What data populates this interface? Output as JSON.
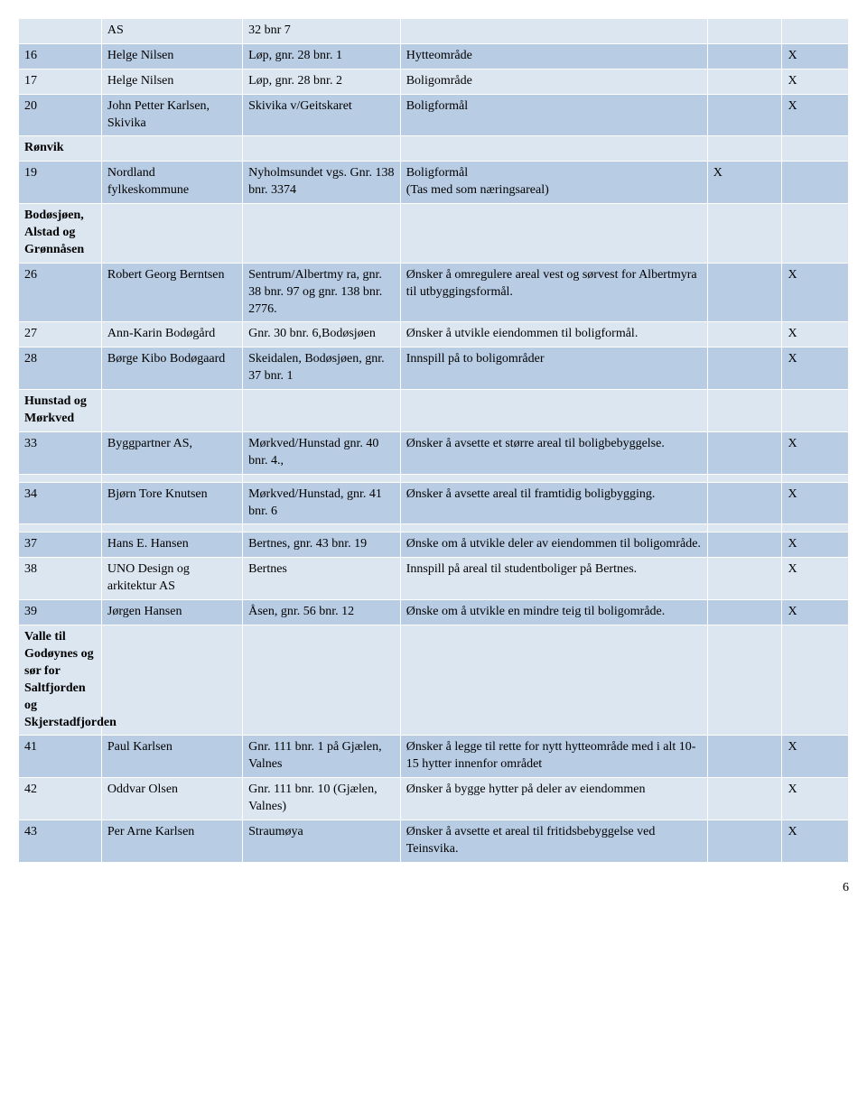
{
  "colors": {
    "row_a": "#dce6f1",
    "row_b": "#b8cce4",
    "border": "#ffffff",
    "text": "#000000",
    "bg": "#ffffff"
  },
  "col_widths_pct": [
    10,
    17,
    19,
    37,
    9,
    8
  ],
  "fontsize": 14,
  "page_number": "6",
  "rows": [
    {
      "band": "a",
      "c0": "",
      "c1": "AS",
      "c2": "32 bnr 7",
      "c3": "",
      "c4": "",
      "c5": ""
    },
    {
      "band": "b",
      "c0": "16",
      "c1": "Helge Nilsen",
      "c2": "Løp, gnr. 28 bnr. 1",
      "c3": "Hytteområde",
      "c4": "",
      "c5": "X"
    },
    {
      "band": "a",
      "c0": "17",
      "c1": "Helge Nilsen",
      "c2": "Løp, gnr. 28 bnr. 2",
      "c3": "Boligområde",
      "c4": "",
      "c5": "X"
    },
    {
      "band": "b",
      "c0": "20",
      "c1": "John Petter Karlsen, Skivika",
      "c2": "Skivika v/Geitskaret",
      "c3": "Boligformål",
      "c4": "",
      "c5": "X"
    },
    {
      "band": "a",
      "section": true,
      "c0": "Rønvik",
      "c1": "",
      "c2": "",
      "c3": "",
      "c4": "",
      "c5": ""
    },
    {
      "band": "b",
      "c0": "19",
      "c1": "Nordland fylkeskommune",
      "c2": "Nyholmsundet vgs. Gnr. 138 bnr. 3374",
      "c3": "Boligformål\n(Tas med som næringsareal)",
      "c4": "X",
      "c5": ""
    },
    {
      "band": "a",
      "section": true,
      "c0": "Bodøsjøen, Alstad og Grønnåsen",
      "c1": "",
      "c2": "",
      "c3": "",
      "c4": "",
      "c5": ""
    },
    {
      "band": "b",
      "c0": "26",
      "c1": "Robert Georg Berntsen",
      "c2": "Sentrum/Albertmy ra, gnr. 38 bnr. 97 og gnr. 138 bnr. 2776.",
      "c3": "Ønsker å omregulere areal vest og sørvest for Albertmyra til utbyggingsformål.",
      "c4": "",
      "c5": "X"
    },
    {
      "band": "a",
      "c0": "27",
      "c1": "Ann-Karin Bodøgård",
      "c2": "Gnr. 30 bnr. 6,Bodøsjøen",
      "c3": "Ønsker å utvikle eiendommen til boligformål.",
      "c4": "",
      "c5": "X"
    },
    {
      "band": "b",
      "c0": "28",
      "c1": "Børge Kibo Bodøgaard",
      "c2": "Skeidalen, Bodøsjøen, gnr. 37 bnr. 1",
      "c3": "Innspill på to boligområder",
      "c4": "",
      "c5": "X"
    },
    {
      "band": "a",
      "section": true,
      "c0": "Hunstad og Mørkved",
      "c1": "",
      "c2": "",
      "c3": "",
      "c4": "",
      "c5": ""
    },
    {
      "band": "b",
      "c0": "33",
      "c1": "Byggpartner AS,",
      "c2": "Mørkved/Hunstad gnr. 40 bnr. 4.,",
      "c3": "Ønsker å avsette et større areal til boligbebyggelse.",
      "c4": "",
      "c5": "X"
    },
    {
      "band": "a",
      "c0": "",
      "c1": "",
      "c2": "",
      "c3": "",
      "c4": "",
      "c5": ""
    },
    {
      "band": "b",
      "c0": "34",
      "c1": "Bjørn Tore Knutsen",
      "c2": "Mørkved/Hunstad, gnr. 41 bnr. 6",
      "c3": "Ønsker å avsette areal til framtidig boligbygging.",
      "c4": "",
      "c5": "X"
    },
    {
      "band": "a",
      "c0": "",
      "c1": "",
      "c2": "",
      "c3": "",
      "c4": "",
      "c5": ""
    },
    {
      "band": "b",
      "c0": "37",
      "c1": "Hans E. Hansen",
      "c2": "Bertnes, gnr. 43 bnr. 19",
      "c3": "Ønske om å utvikle deler av eiendommen til boligområde.",
      "c4": "",
      "c5": "X"
    },
    {
      "band": "a",
      "c0": "38",
      "c1": "UNO Design og arkitektur AS",
      "c2": "Bertnes",
      "c3": "Innspill på areal til studentboliger på Bertnes.",
      "c4": "",
      "c5": "X"
    },
    {
      "band": "b",
      "c0": "39",
      "c1": "Jørgen Hansen",
      "c2": "Åsen, gnr. 56 bnr. 12",
      "c3": "Ønske om å utvikle en mindre teig til boligområde.",
      "c4": "",
      "c5": "X"
    },
    {
      "band": "a",
      "section": true,
      "c0": "Valle til Godøynes og sør for Saltfjorden og Skjerstadfjorden",
      "c1": "",
      "c2": "",
      "c3": "",
      "c4": "",
      "c5": ""
    },
    {
      "band": "b",
      "c0": "41",
      "c1": "Paul Karlsen",
      "c2": "Gnr. 111 bnr. 1 på Gjælen, Valnes",
      "c3": "Ønsker å legge til rette for nytt hytteområde med i alt 10- 15 hytter innenfor området",
      "c4": "",
      "c5": "X"
    },
    {
      "band": "a",
      "c0": "42",
      "c1": "Oddvar Olsen",
      "c2": "Gnr. 111 bnr. 10 (Gjælen, Valnes)",
      "c3": "Ønsker å bygge hytter på deler av eiendommen",
      "c4": "",
      "c5": "X"
    },
    {
      "band": "b",
      "c0": "43",
      "c1": "Per Arne Karlsen",
      "c2": "Straumøya",
      "c3": "Ønsker å avsette et areal til fritidsbebyggelse ved Teinsvika.",
      "c4": "",
      "c5": "X"
    }
  ]
}
